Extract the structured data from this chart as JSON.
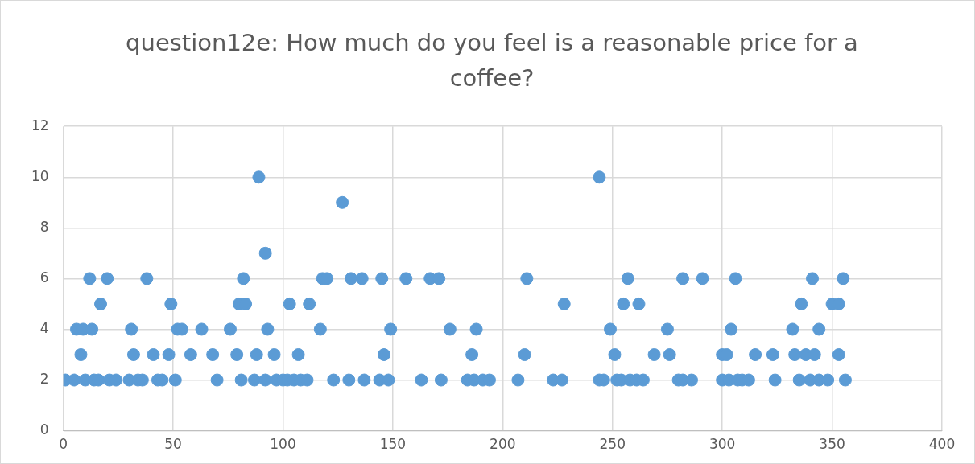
{
  "chart_data": {
    "type": "scatter",
    "title": "question12e: How much do you feel is a reasonable price for a coffee?",
    "color": "#5b9bd5",
    "marker": "circle",
    "grid": true,
    "x": [
      1,
      5,
      10,
      14,
      16,
      21,
      24,
      30,
      34,
      36,
      43,
      45,
      51,
      70,
      81,
      87,
      92,
      97,
      100,
      102,
      105,
      108,
      111,
      123,
      130,
      137,
      144,
      148,
      163,
      172,
      184,
      187,
      191,
      194,
      207,
      223,
      227,
      244,
      246,
      252,
      254,
      258,
      261,
      264,
      280,
      282,
      286,
      300,
      303,
      307,
      309,
      312,
      324,
      335,
      340,
      344,
      348,
      356,
      8,
      32,
      41,
      48,
      58,
      68,
      79,
      88,
      96,
      107,
      146,
      186,
      210,
      251,
      269,
      276,
      300,
      302,
      315,
      323,
      333,
      338,
      342,
      353,
      6,
      9,
      13,
      31,
      52,
      54,
      63,
      76,
      93,
      117,
      149,
      176,
      188,
      249,
      275,
      304,
      332,
      344,
      17,
      49,
      80,
      83,
      103,
      112,
      228,
      255,
      262,
      336,
      350,
      353,
      12,
      20,
      38,
      82,
      118,
      120,
      131,
      136,
      145,
      156,
      167,
      171,
      211,
      257,
      282,
      291,
      306,
      341,
      355,
      92,
      127,
      89,
      244
    ],
    "values": [
      2,
      2,
      2,
      2,
      2,
      2,
      2,
      2,
      2,
      2,
      2,
      2,
      2,
      2,
      2,
      2,
      2,
      2,
      2,
      2,
      2,
      2,
      2,
      2,
      2,
      2,
      2,
      2,
      2,
      2,
      2,
      2,
      2,
      2,
      2,
      2,
      2,
      2,
      2,
      2,
      2,
      2,
      2,
      2,
      2,
      2,
      2,
      2,
      2,
      2,
      2,
      2,
      2,
      2,
      2,
      2,
      2,
      2,
      3,
      3,
      3,
      3,
      3,
      3,
      3,
      3,
      3,
      3,
      3,
      3,
      3,
      3,
      3,
      3,
      3,
      3,
      3,
      3,
      3,
      3,
      3,
      3,
      4,
      4,
      4,
      4,
      4,
      4,
      4,
      4,
      4,
      4,
      4,
      4,
      4,
      4,
      4,
      4,
      4,
      4,
      5,
      5,
      5,
      5,
      5,
      5,
      5,
      5,
      5,
      5,
      5,
      5,
      6,
      6,
      6,
      6,
      6,
      6,
      6,
      6,
      6,
      6,
      6,
      6,
      6,
      6,
      6,
      6,
      6,
      6,
      6,
      7,
      9,
      10,
      10
    ],
    "xlim": [
      0,
      400
    ],
    "xticks": [
      0,
      50,
      100,
      150,
      200,
      250,
      300,
      350,
      400
    ],
    "ylim": [
      0,
      12
    ],
    "yticks": [
      0,
      2,
      4,
      6,
      8,
      10,
      12
    ]
  }
}
